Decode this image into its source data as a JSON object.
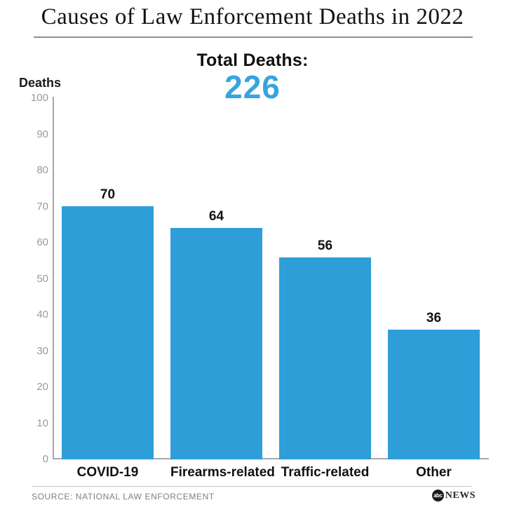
{
  "header": {
    "title": "Causes of Law Enforcement Deaths in 2022"
  },
  "subtitle": {
    "label": "Total Deaths:",
    "value": "226"
  },
  "chart_data": {
    "type": "bar",
    "title": "Causes of Law Enforcement Deaths in 2022",
    "subtitle_label": "Total Deaths:",
    "total": 226,
    "categories": [
      "COVID-19",
      "Firearms-related",
      "Traffic-related",
      "Other"
    ],
    "values": [
      70,
      64,
      56,
      36
    ],
    "value_labels_shown": true,
    "xlabel": "",
    "ylabel": "Deaths",
    "ylim": [
      0,
      100
    ],
    "yticks": [
      0,
      10,
      20,
      30,
      40,
      50,
      60,
      70,
      80,
      90,
      100
    ],
    "grid": false,
    "legend": false,
    "bar_color": "#2e9ed9"
  },
  "footer": {
    "source": "SOURCE: NATIONAL LAW ENFORCEMENT",
    "logo": {
      "abc": "abc",
      "news": "NEWS"
    }
  },
  "colors": {
    "bar_blue": "#2e9ed9",
    "total_blue": "#37a4df",
    "tick_gray": "#9a9a9a",
    "axis_gray": "#a8a8a8",
    "source_gray": "#7f7f7f"
  }
}
